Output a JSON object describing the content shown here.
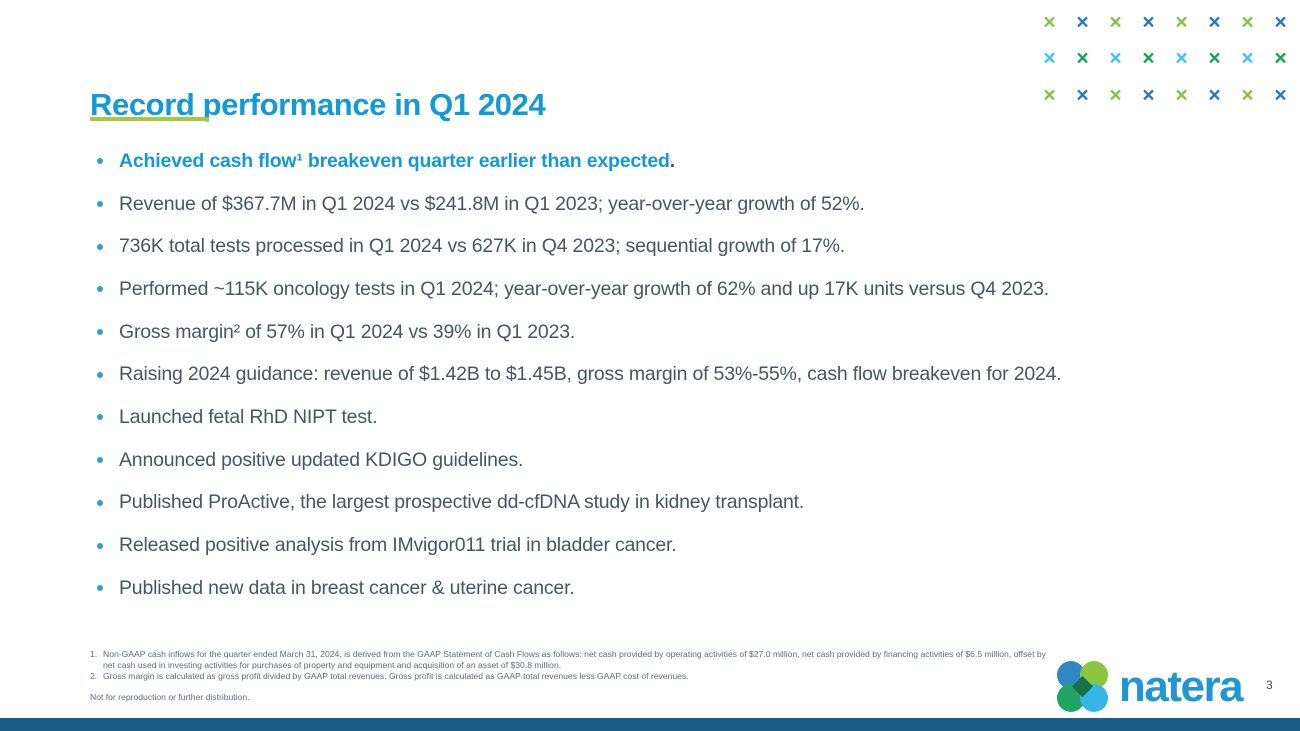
{
  "slide": {
    "title": "Record performance in Q1 2024",
    "page_number": "3"
  },
  "content": {
    "bullets": [
      {
        "text": "Achieved cash flow¹ breakeven quarter earlier than expected",
        "suffix": "."
      },
      {
        "text": "Revenue of $367.7M in Q1 2024 vs $241.8M in Q1 2023; year-over-year growth of 52%."
      },
      {
        "text": "736K total tests processed in Q1 2024 vs 627K in Q4 2023; sequential growth of 17%."
      },
      {
        "text": "Performed ~115K oncology tests in Q1 2024; year-over-year growth of 62% and up 17K units versus Q4 2023."
      },
      {
        "text": "Gross margin² of 57% in Q1 2024 vs 39% in Q1 2023."
      },
      {
        "text": "Raising 2024 guidance: revenue of $1.42B to $1.45B, gross margin of 53%-55%, cash flow breakeven for 2024."
      },
      {
        "text": "Launched fetal RhD NIPT test."
      },
      {
        "text": "Announced positive updated KDIGO guidelines."
      },
      {
        "text": "Published ProActive, the largest prospective dd-cfDNA study in kidney transplant."
      },
      {
        "text": "Released positive analysis from IMvigor011 trial in bladder cancer."
      },
      {
        "text": "Published new data in breast cancer & uterine cancer."
      }
    ]
  },
  "footnotes": [
    {
      "marker": "1.",
      "text": "Non-GAAP cash inflows for the quarter ended March 31, 2024, is derived from the GAAP Statement of Cash Flows as follows: net cash provided by operating activities of $27.0 million, net cash provided by financing activities of $6.5 million, offset by net cash used in investing activities for purchases of property and equipment and acquisition of an asset of $30.8 million."
    },
    {
      "marker": "2.",
      "text": "Gross margin is calculated as gross profit divided by GAAP total revenues. Gross profit is calculated as GAAP total revenues less GAAP cost of revenues."
    }
  ],
  "disclaimer": "Not for reproduction or further distribution.",
  "logo": {
    "wordmark": "natera"
  },
  "colors": {
    "title_blue": "#1499d7",
    "body_text": "#475663",
    "bullet_dot_blue": "#2b9fd9",
    "underline_green": "#a3c93f",
    "footnote_gray": "#5b6d7c",
    "bottom_bar_blue": "#1a5d87",
    "wordmark_blue": "#2196d3",
    "logo_petal_blue": "#2f88c5",
    "logo_petal_lightblue": "#36b5e6",
    "logo_petal_green": "#8bc63f",
    "logo_petal_teal": "#21a463",
    "logo_center_green": "#157347"
  },
  "decoration": {
    "glyph": "×",
    "palette": {
      "green": "#82c341",
      "blue": "#2478bf",
      "cyan": "#3cc4ee",
      "emerald": "#10a750"
    },
    "rows": [
      [
        "green",
        "blue",
        "green",
        "blue",
        "green",
        "blue",
        "green",
        "blue"
      ],
      [
        "cyan",
        "emerald",
        "cyan",
        "emerald",
        "cyan",
        "emerald",
        "cyan",
        "emerald"
      ],
      [
        "green",
        "blue",
        "green",
        "blue",
        "green",
        "blue",
        "green",
        "blue"
      ]
    ]
  }
}
